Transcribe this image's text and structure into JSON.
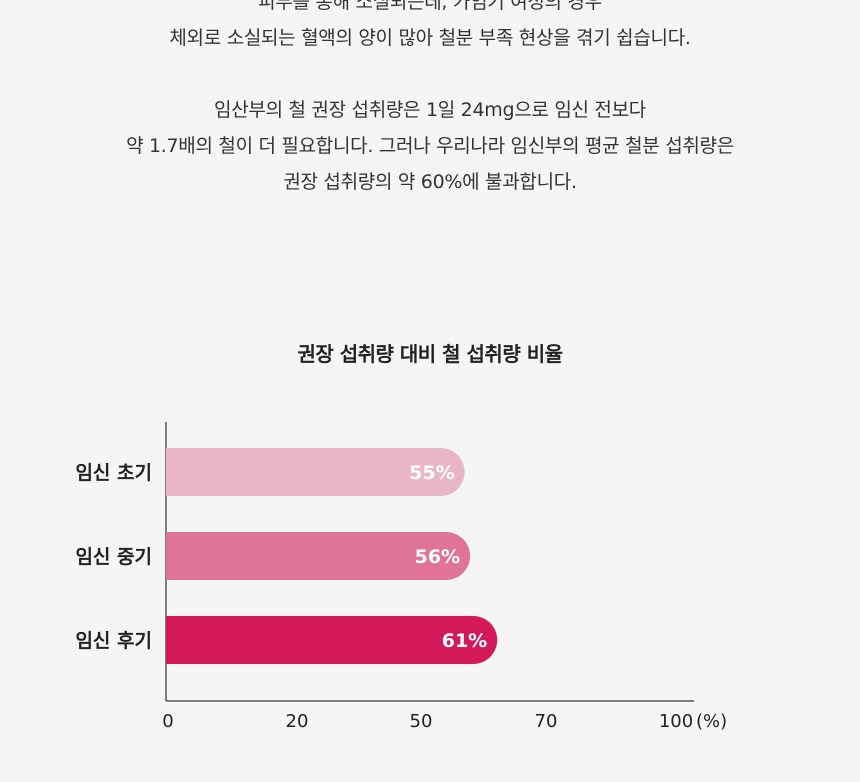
{
  "intro": {
    "lines_1": [
      "피부를 통해 소실되는데, 가임기 여성의 경우",
      "체외로 소실되는 혈액의 양이 많아 철분 부족 현상을 겪기 쉽습니다."
    ],
    "lines_2": [
      "임산부의 철 권장 섭취량은 1일 24mg으로 임신 전보다",
      "약 1.7배의 철이 더 필요합니다. 그러나 우리나라 임신부의 평균 철분 섭취량은",
      "권장 섭취량의 약 60%에 불과합니다."
    ]
  },
  "chart_data": {
    "type": "bar",
    "orientation": "horizontal",
    "title": "권장 섭취량 대비 철 섭취량 비율",
    "categories": [
      "임신 초기",
      "임신 중기",
      "임신 후기"
    ],
    "values": [
      55,
      56,
      61
    ],
    "value_labels": [
      "55%",
      "56%",
      "61%"
    ],
    "colors": [
      "#e9b6c8",
      "#e07497",
      "#d4195a"
    ],
    "xticks": [
      "0",
      "20",
      "50",
      "70",
      "100"
    ],
    "xtick_values": [
      0,
      20,
      50,
      70,
      100
    ],
    "xunit": "(%)",
    "xlim": [
      0,
      100
    ],
    "grid": false
  }
}
